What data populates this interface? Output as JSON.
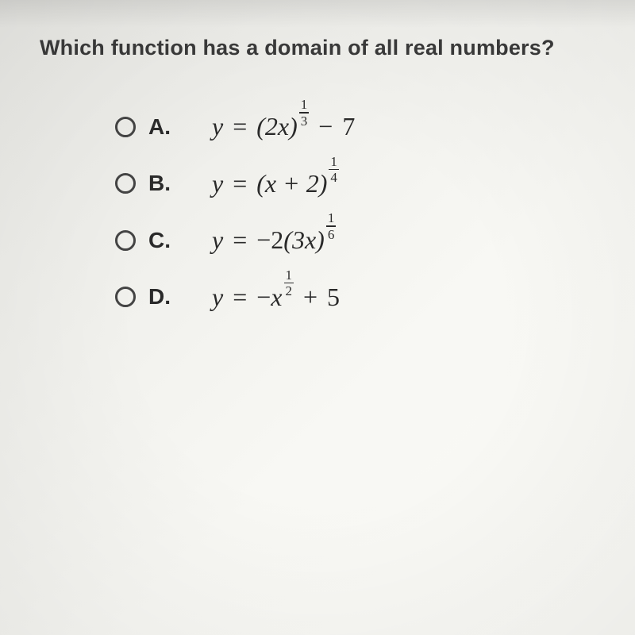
{
  "question": {
    "text": "Which function has a domain of all real numbers?",
    "fontsize": 27,
    "color": "#3a3a3a"
  },
  "options": [
    {
      "label": "A.",
      "equation": {
        "lhs": "y",
        "eq": "=",
        "base": "(2x)",
        "exp_num": "1",
        "exp_den": "3",
        "tail_op": "−",
        "tail_val": "7"
      }
    },
    {
      "label": "B.",
      "equation": {
        "lhs": "y",
        "eq": "=",
        "base": "(x + 2)",
        "exp_num": "1",
        "exp_den": "4",
        "tail_op": "",
        "tail_val": ""
      }
    },
    {
      "label": "C.",
      "equation": {
        "lhs": "y",
        "eq": "=",
        "prefix": "−2",
        "base": "(3x)",
        "exp_num": "1",
        "exp_den": "6",
        "tail_op": "",
        "tail_val": ""
      }
    },
    {
      "label": "D.",
      "equation": {
        "lhs": "y",
        "eq": "=",
        "prefix": "−",
        "base": "x",
        "exp_num": "1",
        "exp_den": "2",
        "tail_op": "+",
        "tail_val": "5"
      }
    }
  ],
  "style": {
    "radio_border": "#444",
    "text_color": "#2a2a2a",
    "eq_fontsize": 32,
    "label_fontsize": 28,
    "background_gradient": [
      "#e8e8e4",
      "#fafaf6"
    ]
  }
}
